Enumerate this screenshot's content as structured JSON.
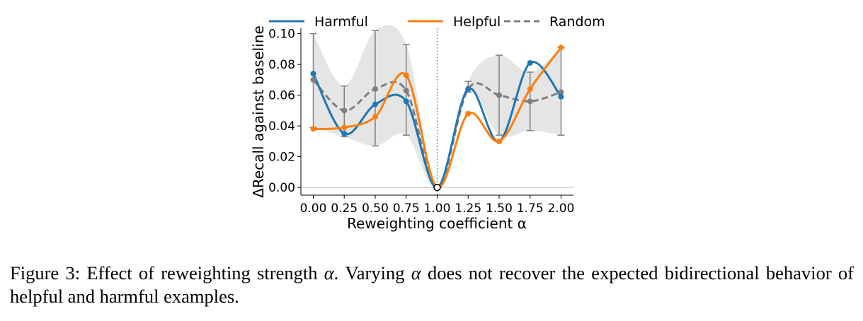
{
  "caption": {
    "label": "Figure 3:",
    "part1": "Effect of reweighting strength",
    "alpha": "α",
    "part2": ". Varying",
    "part3": "does not recover the expected bidirectional behavior of helpful and harmful examples."
  },
  "colors": {
    "harmful": "#1f77b4",
    "helpful": "#ff7f0e",
    "random": "#7f7f7f",
    "band": "#e5e5e5",
    "errorbar": "#808080"
  },
  "chart_data": {
    "type": "line",
    "title": "",
    "xlabel": "Reweighting coefficient α",
    "ylabel": "ΔRecall against baseline",
    "xlim": [
      -0.1,
      2.1
    ],
    "ylim": [
      -0.005,
      0.1035
    ],
    "x_ticks": [
      "0.00",
      "0.25",
      "0.50",
      "0.75",
      "1.00",
      "1.25",
      "1.50",
      "1.75",
      "2.00"
    ],
    "y_ticks": [
      "0.00",
      "0.02",
      "0.04",
      "0.06",
      "0.08",
      "0.10"
    ],
    "x": [
      0.0,
      0.25,
      0.5,
      0.75,
      1.0,
      1.25,
      1.5,
      1.75,
      2.0
    ],
    "series": [
      {
        "name": "Harmful",
        "style": "solid",
        "color": "#1f77b4",
        "values": [
          0.074,
          0.035,
          0.054,
          0.056,
          0.0,
          0.064,
          0.03,
          0.081,
          0.059
        ]
      },
      {
        "name": "Helpful",
        "style": "solid",
        "color": "#ff7f0e",
        "values": [
          0.038,
          0.039,
          0.046,
          0.073,
          0.0,
          0.048,
          0.03,
          0.064,
          0.091
        ]
      },
      {
        "name": "Random",
        "style": "dashed",
        "color": "#7f7f7f",
        "values": [
          0.07,
          0.05,
          0.064,
          0.063,
          0.0,
          0.064,
          0.06,
          0.056,
          0.062
        ],
        "error_low": [
          0.039,
          0.033,
          0.027,
          0.034,
          0.0,
          0.062,
          0.034,
          0.037,
          0.034
        ],
        "error_high": [
          0.1,
          0.066,
          0.102,
          0.093,
          0.0,
          0.069,
          0.086,
          0.075,
          0.091
        ]
      }
    ],
    "reference_line": {
      "x": 1.0,
      "style": "dotted"
    },
    "baseline_marker": {
      "x": 1.0,
      "y": 0.0,
      "style": "open-circle"
    },
    "legend": {
      "placement": "top",
      "entries": [
        "Harmful",
        "Helpful",
        "Random"
      ]
    },
    "grid": false
  }
}
